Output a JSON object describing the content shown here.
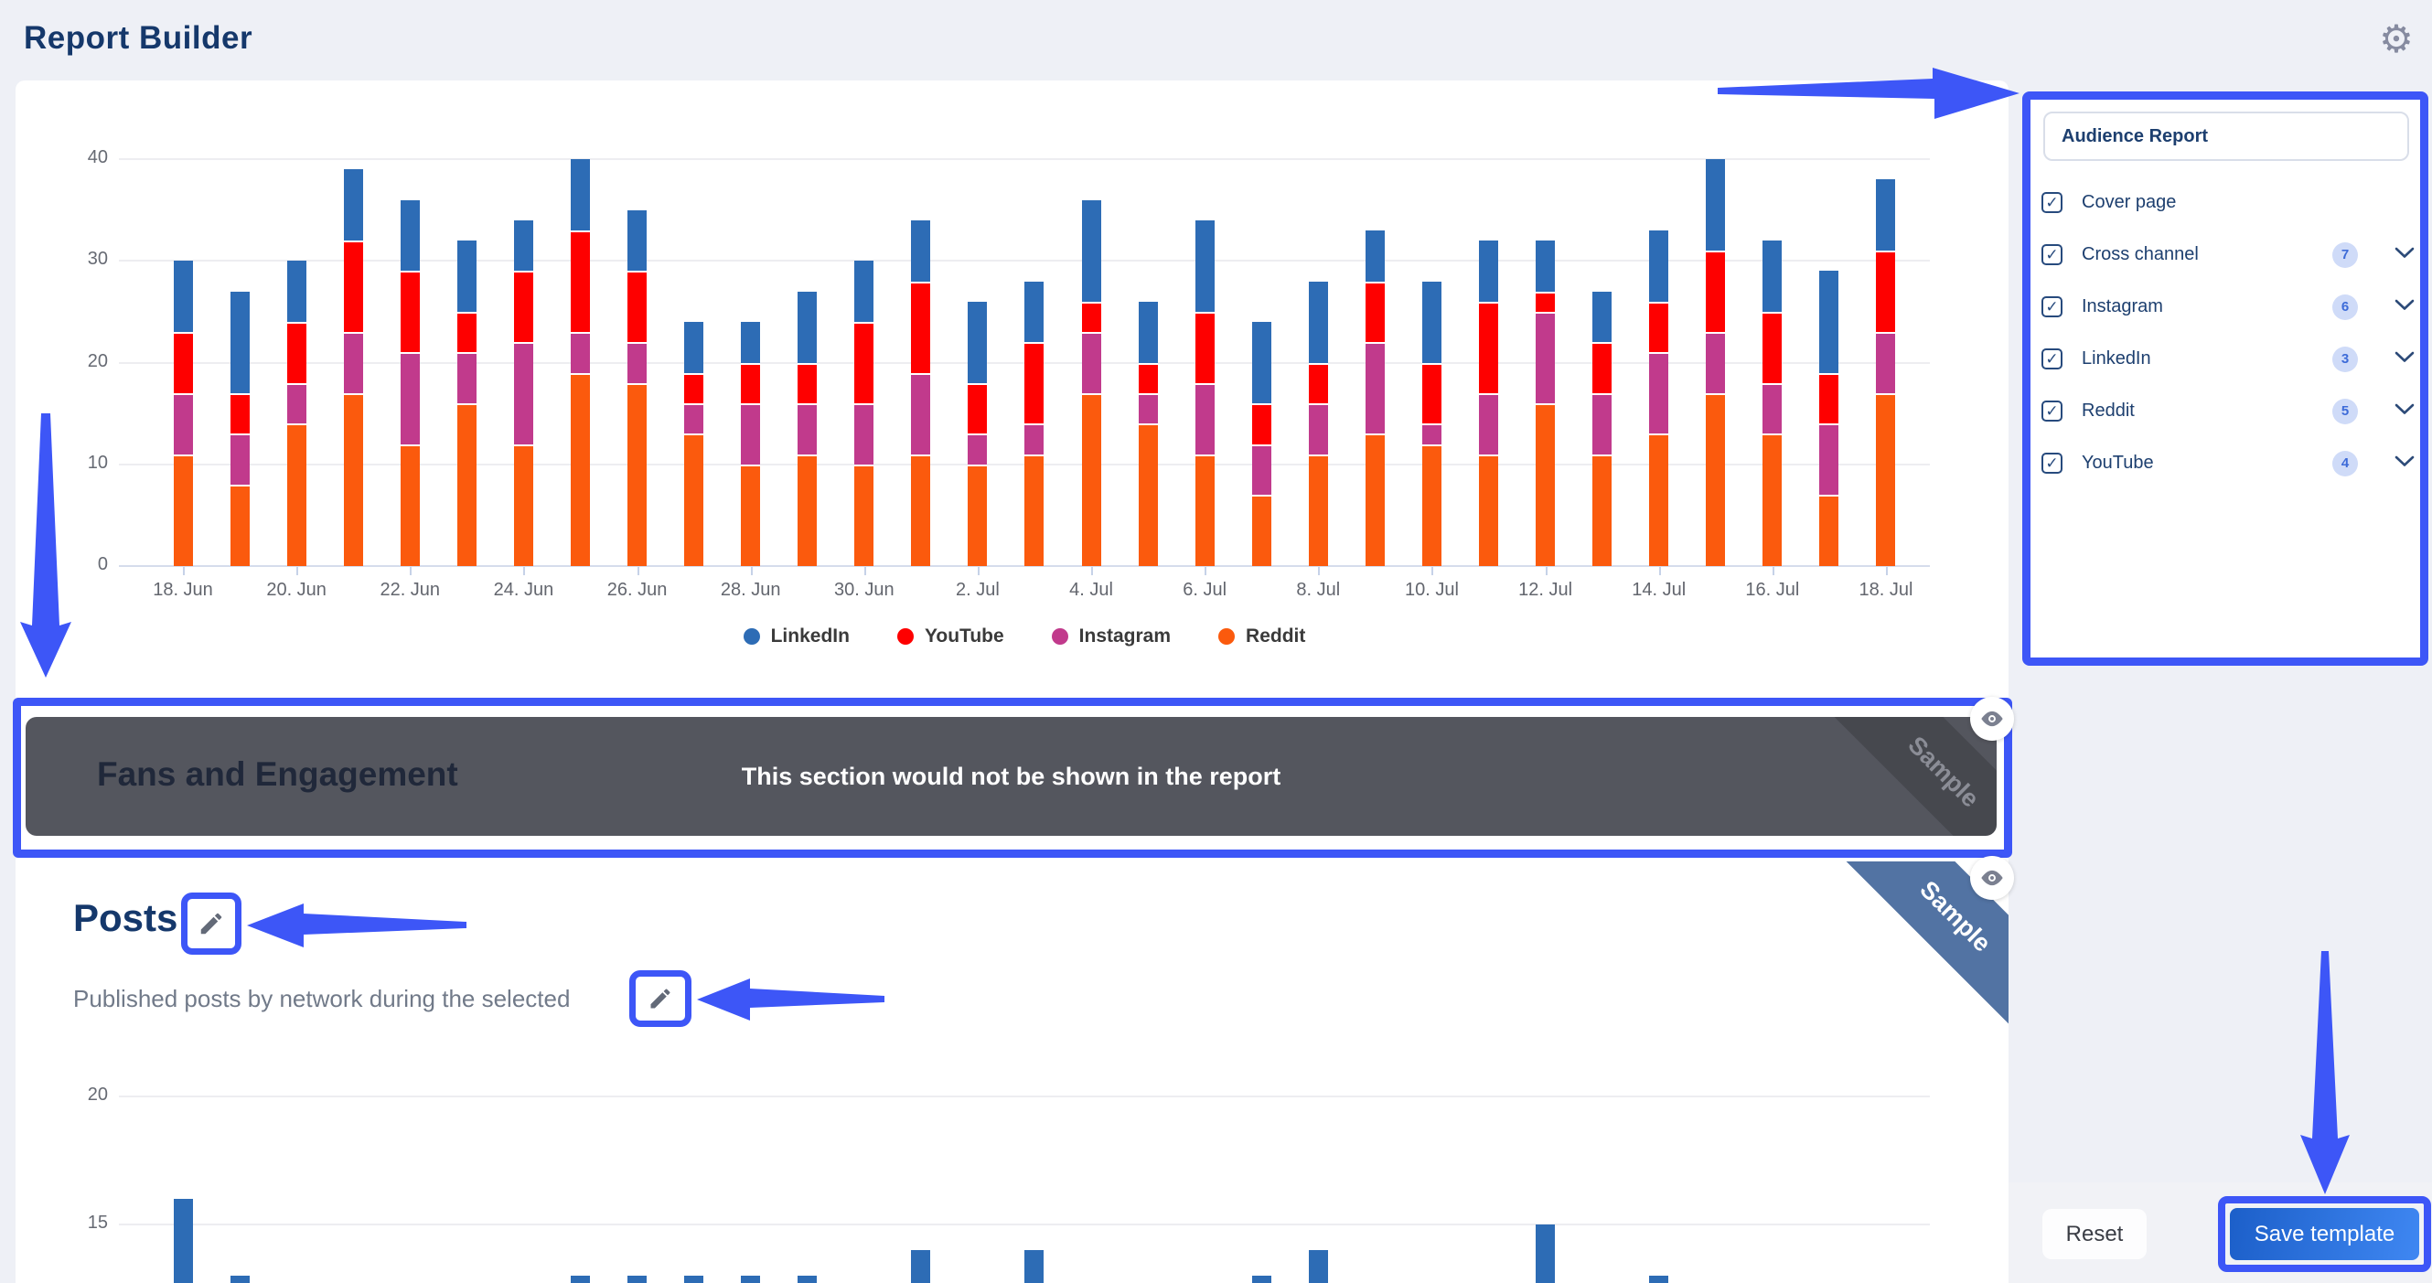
{
  "header": {
    "title": "Report Builder",
    "gear_icon": "gear-icon"
  },
  "annotation_color": "#3d56f7",
  "chart_data": [
    {
      "type": "bar",
      "stacked": true,
      "title": "",
      "categories": [
        "18. Jun",
        "19. Jun",
        "20. Jun",
        "21. Jun",
        "22. Jun",
        "23. Jun",
        "24. Jun",
        "25. Jun",
        "26. Jun",
        "27. Jun",
        "28. Jun",
        "29. Jun",
        "30. Jun",
        "1. Jul",
        "2. Jul",
        "3. Jul",
        "4. Jul",
        "5. Jul",
        "6. Jul",
        "7. Jul",
        "8. Jul",
        "9. Jul",
        "10. Jul",
        "11. Jul",
        "12. Jul",
        "13. Jul",
        "14. Jul",
        "15. Jul",
        "16. Jul",
        "17. Jul",
        "18. Jul"
      ],
      "tick_labels": [
        "18. Jun",
        "20. Jun",
        "22. Jun",
        "24. Jun",
        "26. Jun",
        "28. Jun",
        "30. Jun",
        "2. Jul",
        "4. Jul",
        "6. Jul",
        "8. Jul",
        "10. Jul",
        "12. Jul",
        "14. Jul",
        "16. Jul",
        "18. Jul"
      ],
      "ylim": [
        0,
        40
      ],
      "yticks": [
        0,
        10,
        20,
        30,
        40
      ],
      "grid": true,
      "legend_position": "bottom",
      "legend_order": [
        "LinkedIn",
        "YouTube",
        "Instagram",
        "Reddit"
      ],
      "series": [
        {
          "name": "Reddit",
          "color": "#fb5a0d",
          "values": [
            11,
            8,
            14,
            17,
            12,
            16,
            12,
            19,
            18,
            13,
            10,
            11,
            10,
            11,
            10,
            11,
            17,
            14,
            11,
            7,
            11,
            13,
            12,
            11,
            16,
            11,
            13,
            17,
            13,
            7,
            17
          ]
        },
        {
          "name": "Instagram",
          "color": "#c13a8c",
          "values": [
            6,
            5,
            4,
            6,
            9,
            5,
            10,
            4,
            4,
            3,
            6,
            5,
            6,
            8,
            3,
            3,
            6,
            3,
            7,
            5,
            5,
            9,
            2,
            6,
            9,
            6,
            8,
            6,
            5,
            7,
            6
          ]
        },
        {
          "name": "YouTube",
          "color": "#fe0000",
          "values": [
            6,
            4,
            6,
            9,
            8,
            4,
            7,
            10,
            7,
            3,
            4,
            4,
            8,
            9,
            5,
            8,
            3,
            3,
            7,
            4,
            4,
            6,
            6,
            9,
            2,
            5,
            5,
            8,
            7,
            5,
            8
          ]
        },
        {
          "name": "LinkedIn",
          "color": "#2d6cb5",
          "values": [
            7,
            10,
            6,
            7,
            7,
            7,
            5,
            7,
            6,
            5,
            4,
            7,
            6,
            6,
            8,
            6,
            10,
            6,
            9,
            8,
            8,
            5,
            8,
            6,
            5,
            5,
            7,
            9,
            7,
            10,
            7
          ]
        }
      ]
    },
    {
      "type": "bar",
      "title": "Posts (partially visible)",
      "color": "#2d6cb5",
      "categories": [
        "18. Jun",
        "19. Jun",
        "20. Jun",
        "21. Jun",
        "22. Jun",
        "23. Jun",
        "24. Jun",
        "25. Jun",
        "26. Jun",
        "27. Jun",
        "28. Jun",
        "29. Jun",
        "30. Jun",
        "1. Jul",
        "2. Jul",
        "3. Jul",
        "4. Jul",
        "5. Jul",
        "6. Jul",
        "7. Jul",
        "8. Jul",
        "9. Jul",
        "10. Jul",
        "11. Jul",
        "12. Jul",
        "13. Jul",
        "14. Jul",
        "15. Jul",
        "16. Jul",
        "17. Jul",
        "18. Jul"
      ],
      "yticks_visible": [
        15,
        20
      ],
      "values": [
        16,
        13,
        null,
        null,
        null,
        null,
        null,
        13,
        13,
        13,
        13,
        13,
        null,
        14,
        null,
        14,
        null,
        null,
        null,
        13,
        14,
        null,
        null,
        null,
        15,
        null,
        13,
        null,
        null,
        null,
        null
      ]
    }
  ],
  "sidebar": {
    "title": "Audience Report",
    "items": [
      {
        "label": "Cover page",
        "checked": true,
        "count": null,
        "chevron": false
      },
      {
        "label": "Cross channel",
        "checked": true,
        "count": "7",
        "chevron": true
      },
      {
        "label": "Instagram",
        "checked": true,
        "count": "6",
        "chevron": true
      },
      {
        "label": "LinkedIn",
        "checked": true,
        "count": "3",
        "chevron": true
      },
      {
        "label": "Reddit",
        "checked": true,
        "count": "5",
        "chevron": true
      },
      {
        "label": "YouTube",
        "checked": true,
        "count": "4",
        "chevron": true
      }
    ]
  },
  "fans": {
    "title": "Fans and Engagement",
    "overlay": "This section would not be shown in the report",
    "ribbon": "Sample"
  },
  "posts": {
    "title": "Posts",
    "subtitle": "Published posts by network during the selected",
    "ribbon": "Sample"
  },
  "footer": {
    "reset": "Reset",
    "save": "Save template"
  }
}
